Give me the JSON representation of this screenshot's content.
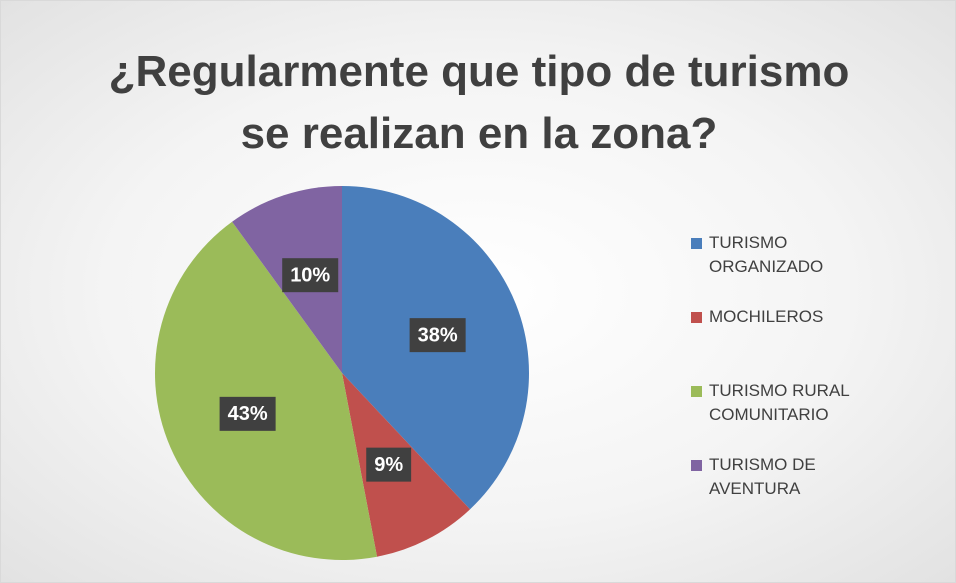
{
  "chart_data": {
    "type": "pie",
    "title": "¿Regularmente que tipo de turismo se realizan en la zona?",
    "categories": [
      "TURISMO ORGANIZADO",
      "MOCHILEROS",
      "TURISMO RURAL COMUNITARIO",
      "TURISMO DE AVENTURA"
    ],
    "values": [
      38,
      9,
      43,
      10
    ],
    "value_labels": [
      "38%",
      "9%",
      "43%",
      "10%"
    ],
    "colors": [
      "#4a7ebb",
      "#c0504d",
      "#9bbb59",
      "#8064a2"
    ],
    "legend": "right"
  }
}
